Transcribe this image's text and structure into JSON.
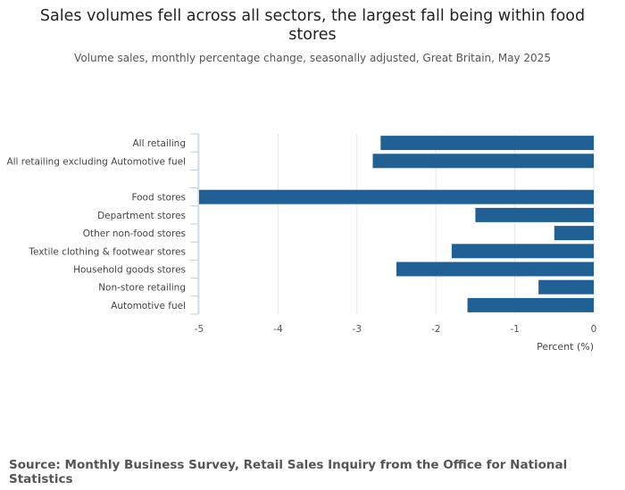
{
  "title": "Sales volumes fell across all sectors, the largest fall being within food stores",
  "subtitle": "Volume sales, monthly percentage change, seasonally adjusted, Great Britain, May 2025",
  "source": "Source: Monthly Business Survey, Retail Sales Inquiry from the Office for National Statistics",
  "colors": {
    "bar": "#206095",
    "grid": "#e6e6e6",
    "axis": "#bcd0e3"
  },
  "chart_data": {
    "type": "bar",
    "orientation": "horizontal",
    "categories": [
      "All retailing",
      "All retailing excluding Automotive fuel",
      "",
      "Food stores",
      "Department stores",
      "Other non-food stores",
      "Textile clothing & footwear stores",
      "Household goods stores",
      "Non-store retailing",
      "Automotive fuel"
    ],
    "values": [
      -2.7,
      -2.8,
      null,
      -5.0,
      -1.5,
      -0.5,
      -1.8,
      -2.5,
      -0.7,
      -1.6
    ],
    "xlim": [
      -5,
      0
    ],
    "xticks": [
      -5,
      -4,
      -3,
      -2,
      -1,
      0
    ],
    "xtick_labels": [
      "-5",
      "-4",
      "-3",
      "-2",
      "-1",
      "0"
    ],
    "xlabel": "Percent (%)",
    "ylabel": ""
  }
}
